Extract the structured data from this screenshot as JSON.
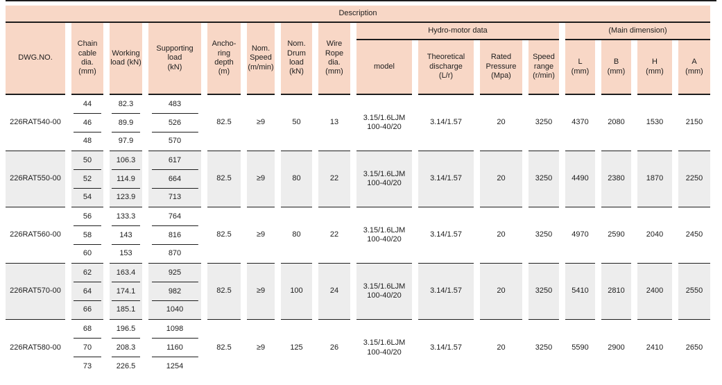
{
  "table": {
    "description_label": "Description",
    "group_headers": {
      "hydro_motor": "Hydro-motor data",
      "main_dimension": "(Main dimension)"
    },
    "columns": [
      {
        "key": "dwg",
        "label": "DWG.NO."
      },
      {
        "key": "chain",
        "label": "Chain\ncable dia.\n(mm)"
      },
      {
        "key": "working",
        "label": "Working\nload (kN)"
      },
      {
        "key": "supporting",
        "label": "Supporting\nload\n(kN)"
      },
      {
        "key": "depth",
        "label": "Ancho-\nring\ndepth\n(m)"
      },
      {
        "key": "speed",
        "label": "Nom.\nSpeed\n(m/min)"
      },
      {
        "key": "drum",
        "label": "Nom.\nDrum\nload\n(kN)"
      },
      {
        "key": "wire",
        "label": "Wire\nRope dia.\n(mm)"
      },
      {
        "key": "model",
        "label": "model"
      },
      {
        "key": "discharge",
        "label": "Theoretical\ndischarge\n(L/r)"
      },
      {
        "key": "pressure",
        "label": "Rated\nPressure\n(Mpa)"
      },
      {
        "key": "range",
        "label": "Speed\nrange\n(r/min)"
      },
      {
        "key": "L",
        "label": "L\n(mm)"
      },
      {
        "key": "B",
        "label": "B\n(mm)"
      },
      {
        "key": "H",
        "label": "H\n(mm)"
      },
      {
        "key": "A",
        "label": "A\n(mm)"
      }
    ],
    "rows": [
      {
        "dwg": "226RAT540-00",
        "chain": [
          "44",
          "46",
          "48"
        ],
        "working": [
          "82.3",
          "89.9",
          "97.9"
        ],
        "supporting": [
          "483",
          "526",
          "570"
        ],
        "depth": "82.5",
        "speed": "≥9",
        "drum": "50",
        "wire": "13",
        "model": "3.15/1.6LJM\n100-40/20",
        "discharge": "3.14/1.57",
        "pressure": "20",
        "range": "3250",
        "L": "4370",
        "B": "2080",
        "H": "1530",
        "A": "2150"
      },
      {
        "dwg": "226RAT550-00",
        "chain": [
          "50",
          "52",
          "54"
        ],
        "working": [
          "106.3",
          "114.9",
          "123.9"
        ],
        "supporting": [
          "617",
          "664",
          "713"
        ],
        "depth": "82.5",
        "speed": "≥9",
        "drum": "80",
        "wire": "22",
        "model": "3.15/1.6LJM\n100-40/20",
        "discharge": "3.14/1.57",
        "pressure": "20",
        "range": "3250",
        "L": "4490",
        "B": "2380",
        "H": "1870",
        "A": "2250"
      },
      {
        "dwg": "226RAT560-00",
        "chain": [
          "56",
          "58",
          "60"
        ],
        "working": [
          "133.3",
          "143",
          "153"
        ],
        "supporting": [
          "764",
          "816",
          "870"
        ],
        "depth": "82.5",
        "speed": "≥9",
        "drum": "80",
        "wire": "22",
        "model": "3.15/1.6LJM\n100-40/20",
        "discharge": "3.14/1.57",
        "pressure": "20",
        "range": "3250",
        "L": "4970",
        "B": "2590",
        "H": "2040",
        "A": "2450"
      },
      {
        "dwg": "226RAT570-00",
        "chain": [
          "62",
          "64",
          "66"
        ],
        "working": [
          "163.4",
          "174.1",
          "185.1"
        ],
        "supporting": [
          "925",
          "982",
          "1040"
        ],
        "depth": "82.5",
        "speed": "≥9",
        "drum": "100",
        "wire": "24",
        "model": "3.15/1.6LJM\n100-40/20",
        "discharge": "3.14/1.57",
        "pressure": "20",
        "range": "3250",
        "L": "5410",
        "B": "2810",
        "H": "2400",
        "A": "2550"
      },
      {
        "dwg": "226RAT580-00",
        "chain": [
          "68",
          "70",
          "73"
        ],
        "working": [
          "196.5",
          "208.3",
          "226.5"
        ],
        "supporting": [
          "1098",
          "1160",
          "1254"
        ],
        "depth": "82.5",
        "speed": "≥9",
        "drum": "125",
        "wire": "26",
        "model": "3.15/1.6LJM\n100-40/20",
        "discharge": "3.14/1.57",
        "pressure": "20",
        "range": "3250",
        "L": "5590",
        "B": "2900",
        "H": "2410",
        "A": "2650"
      }
    ]
  },
  "colors": {
    "header_bg": "#f8d7c6",
    "row_alt_bg": "#ededed",
    "line": "#1c1c1c"
  }
}
